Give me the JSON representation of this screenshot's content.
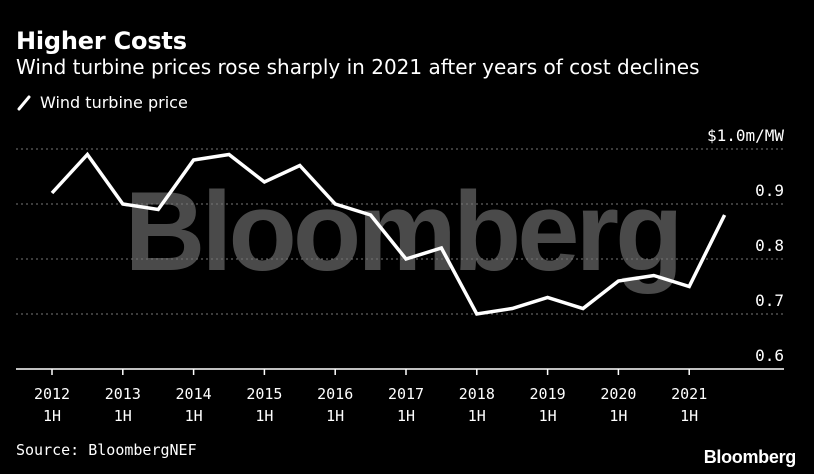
{
  "header": {
    "title": "Higher Costs",
    "subtitle": "Wind turbine prices rose sharply in 2021 after years of cost declines"
  },
  "legend": {
    "label": "Wind turbine price",
    "icon": "line-swatch-icon"
  },
  "watermark": "Bloomberg",
  "footer": {
    "source": "Source: BloombergNEF",
    "brand": "Bloomberg"
  },
  "colors": {
    "background": "#000000",
    "line": "#ffffff",
    "grid": "#777777",
    "text": "#ffffff",
    "watermark": "#4a4a4a"
  },
  "chart_data": {
    "type": "line",
    "title": "Higher Costs",
    "subtitle": "Wind turbine prices rose sharply in 2021 after years of cost declines",
    "unit_label": "$1.0m/MW",
    "ylim": [
      0.6,
      1.0
    ],
    "yticks": [
      {
        "value": 1.0,
        "label": "$1.0m/MW"
      },
      {
        "value": 0.9,
        "label": "0.9"
      },
      {
        "value": 0.8,
        "label": "0.8"
      },
      {
        "value": 0.7,
        "label": "0.7"
      },
      {
        "value": 0.6,
        "label": "0.6"
      }
    ],
    "xticks": [
      {
        "year": "2012",
        "half": "1H"
      },
      {
        "year": "2013",
        "half": "1H"
      },
      {
        "year": "2014",
        "half": "1H"
      },
      {
        "year": "2015",
        "half": "1H"
      },
      {
        "year": "2016",
        "half": "1H"
      },
      {
        "year": "2017",
        "half": "1H"
      },
      {
        "year": "2018",
        "half": "1H"
      },
      {
        "year": "2019",
        "half": "1H"
      },
      {
        "year": "2020",
        "half": "1H"
      },
      {
        "year": "2021",
        "half": "1H"
      }
    ],
    "grid": true,
    "legend_position": "top-left",
    "series": [
      {
        "name": "Wind turbine price",
        "x": [
          "2012 1H",
          "2012 2H",
          "2013 1H",
          "2013 2H",
          "2014 1H",
          "2014 2H",
          "2015 1H",
          "2015 2H",
          "2016 1H",
          "2016 2H",
          "2017 1H",
          "2017 2H",
          "2018 1H",
          "2018 2H",
          "2019 1H",
          "2019 2H",
          "2020 1H",
          "2020 2H",
          "2021 1H",
          "2021 2H"
        ],
        "values": [
          0.92,
          0.99,
          0.9,
          0.89,
          0.98,
          0.99,
          0.94,
          0.97,
          0.9,
          0.88,
          0.8,
          0.82,
          0.7,
          0.71,
          0.73,
          0.71,
          0.76,
          0.77,
          0.75,
          0.88
        ]
      }
    ]
  }
}
